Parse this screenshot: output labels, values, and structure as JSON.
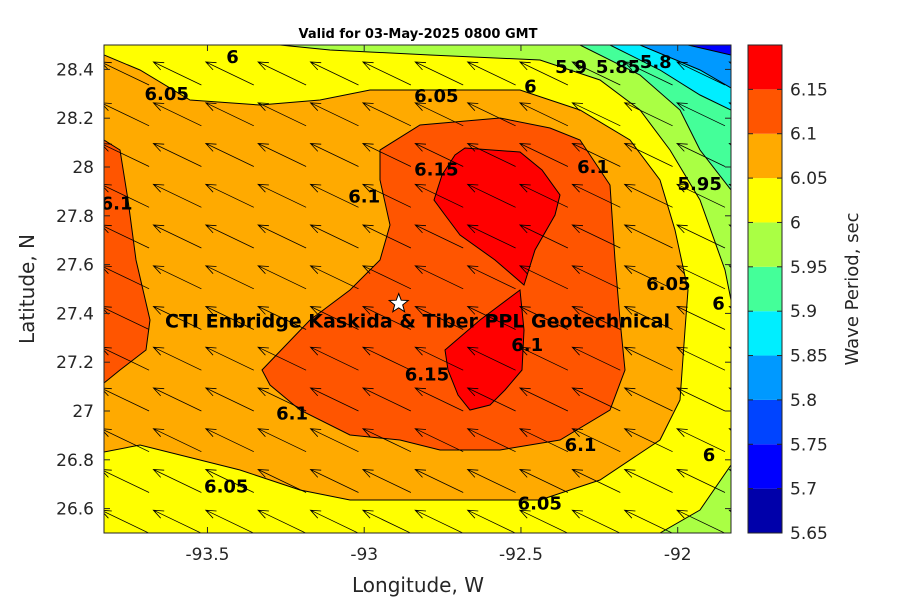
{
  "chart_data": {
    "type": "contourf",
    "title": "Valid for 03-May-2025 0800 GMT",
    "xlabel": "Longitude, W",
    "ylabel": "Latitude, N",
    "xlim": [
      -93.83,
      -91.83
    ],
    "ylim": [
      26.5,
      28.5
    ],
    "xticks": [
      -93.5,
      -93,
      -92.5,
      -92
    ],
    "yticks": [
      26.6,
      26.8,
      27,
      27.2,
      27.4,
      27.6,
      27.8,
      28,
      28.2,
      28.4
    ],
    "grid": false,
    "colorbar": {
      "label": "Wave Period, sec",
      "levels": [
        5.65,
        5.7,
        5.75,
        5.8,
        5.85,
        5.9,
        5.95,
        6,
        6.05,
        6.1,
        6.15
      ],
      "colors": [
        "#0000aa",
        "#0000ff",
        "#0044ff",
        "#0099ff",
        "#00eeff",
        "#44ff99",
        "#aaff44",
        "#ffff00",
        "#ffaa00",
        "#ff5500",
        "#ff0000"
      ]
    },
    "contour_labels": [
      {
        "text": "6",
        "lon": -93.42,
        "lat": 28.45
      },
      {
        "text": "6.05",
        "lon": -93.63,
        "lat": 28.3
      },
      {
        "text": "6.05",
        "lon": -92.77,
        "lat": 28.29
      },
      {
        "text": "6",
        "lon": -92.47,
        "lat": 28.33
      },
      {
        "text": "5.9",
        "lon": -92.34,
        "lat": 28.41
      },
      {
        "text": "5.85",
        "lon": -92.19,
        "lat": 28.41
      },
      {
        "text": "5.8",
        "lon": -92.07,
        "lat": 28.43
      },
      {
        "text": "6.1",
        "lon": -93.79,
        "lat": 27.85
      },
      {
        "text": "6.1",
        "lon": -93.0,
        "lat": 27.88
      },
      {
        "text": "6.15",
        "lon": -92.77,
        "lat": 27.99
      },
      {
        "text": "6.1",
        "lon": -92.27,
        "lat": 28.0
      },
      {
        "text": "5.95",
        "lon": -91.93,
        "lat": 27.93
      },
      {
        "text": "6.05",
        "lon": -92.03,
        "lat": 27.52
      },
      {
        "text": "6",
        "lon": -91.87,
        "lat": 27.44
      },
      {
        "text": "6.1",
        "lon": -92.48,
        "lat": 27.27
      },
      {
        "text": "6.15",
        "lon": -92.8,
        "lat": 27.15
      },
      {
        "text": "6.1",
        "lon": -93.23,
        "lat": 26.99
      },
      {
        "text": "6.1",
        "lon": -92.31,
        "lat": 26.86
      },
      {
        "text": "6",
        "lon": -91.9,
        "lat": 26.82
      },
      {
        "text": "6.05",
        "lon": -93.44,
        "lat": 26.69
      },
      {
        "text": "6.05",
        "lon": -92.44,
        "lat": 26.62
      }
    ],
    "site_marker": {
      "lon": -92.89,
      "lat": 27.44,
      "symbol": "star"
    },
    "annotation": {
      "text": "CTI Enbridge  Kaskida & Tiber PPL Geotechnical",
      "lon": -92.83,
      "lat": 27.37
    },
    "wave_direction_arrows": {
      "lon_step": 0.167,
      "lat_step": 0.167,
      "direction_to": "NW"
    }
  }
}
